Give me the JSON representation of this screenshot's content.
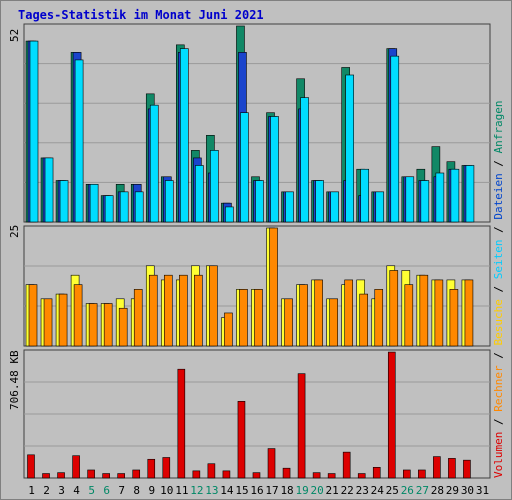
{
  "title": "Tages-Statistik im Monat Juni 2021",
  "panel_labels": {
    "top_max": "52",
    "middle_max": "25",
    "bottom_max": "706.48 KB"
  },
  "legend": [
    {
      "label": "Volumen",
      "color": "#dd0000"
    },
    {
      "label": "Rechner",
      "color": "#ff8800"
    },
    {
      "label": "Besuche",
      "color": "#ffcc00"
    },
    {
      "label": "Seiten",
      "color": "#00ccff"
    },
    {
      "label": "Dateien",
      "color": "#0044cc"
    },
    {
      "label": "Anfragen",
      "color": "#008866"
    }
  ],
  "legend_separator": " / ",
  "colors": {
    "anfragen": "#118866",
    "dateien": "#1a44cc",
    "seiten": "#00ddff",
    "besuche": "#ffff33",
    "rechner": "#ff8800",
    "volumen": "#dd0000",
    "weekend_label": "#008866",
    "weekday_label": "#000000"
  },
  "chart_data": {
    "type": "bar",
    "categories": [
      "1",
      "2",
      "3",
      "4",
      "5",
      "6",
      "7",
      "8",
      "9",
      "10",
      "11",
      "12",
      "13",
      "14",
      "15",
      "16",
      "17",
      "18",
      "19",
      "20",
      "21",
      "22",
      "23",
      "24",
      "25",
      "26",
      "27",
      "28",
      "29",
      "30",
      "31"
    ],
    "weekend_days": [
      "5",
      "6",
      "12",
      "13",
      "19",
      "20",
      "26",
      "27"
    ],
    "panels": [
      {
        "name": "top",
        "ylim": [
          0,
          52
        ],
        "series": [
          {
            "name": "Anfragen",
            "values": [
              48,
              17,
              11,
              45,
              10,
              7,
              10,
              10,
              34,
              12,
              47,
              19,
              23,
              5,
              52,
              12,
              29,
              8,
              38,
              11,
              8,
              41,
              14,
              8,
              46,
              12,
              14,
              20,
              16,
              15,
              0
            ]
          },
          {
            "name": "Dateien",
            "values": [
              48,
              17,
              11,
              45,
              10,
              7,
              8,
              10,
              30,
              12,
              45,
              17,
              13,
              5,
              45,
              11,
              28,
              8,
              30,
              11,
              8,
              11,
              7,
              8,
              46,
              12,
              11,
              12,
              14,
              15,
              0
            ]
          },
          {
            "name": "Seiten",
            "values": [
              48,
              17,
              11,
              43,
              10,
              7,
              8,
              8,
              31,
              11,
              46,
              15,
              19,
              4,
              29,
              11,
              28,
              8,
              33,
              11,
              8,
              39,
              14,
              8,
              44,
              12,
              11,
              13,
              14,
              15,
              0
            ]
          }
        ]
      },
      {
        "name": "middle",
        "ylim": [
          0,
          25
        ],
        "series": [
          {
            "name": "Besuche",
            "values": [
              13,
              10,
              11,
              15,
              9,
              9,
              10,
              10,
              17,
              14,
              14,
              17,
              17,
              6,
              12,
              12,
              25,
              10,
              13,
              14,
              10,
              13,
              14,
              10,
              17,
              16,
              15,
              14,
              14,
              14,
              0
            ]
          },
          {
            "name": "Rechner",
            "values": [
              13,
              10,
              11,
              13,
              9,
              9,
              8,
              12,
              15,
              15,
              15,
              15,
              17,
              7,
              12,
              12,
              25,
              10,
              13,
              14,
              10,
              14,
              11,
              12,
              16,
              13,
              15,
              14,
              12,
              14,
              0
            ]
          }
        ]
      },
      {
        "name": "bottom",
        "ylim": [
          0,
          706.48
        ],
        "series": [
          {
            "name": "Volumen",
            "values": [
              130,
              25,
              30,
              125,
              45,
              25,
              25,
              45,
              105,
              115,
              610,
              40,
              80,
              40,
              430,
              30,
              165,
              55,
              585,
              30,
              25,
              145,
              25,
              60,
              706,
              45,
              45,
              120,
              110,
              100,
              0
            ]
          }
        ]
      }
    ]
  }
}
